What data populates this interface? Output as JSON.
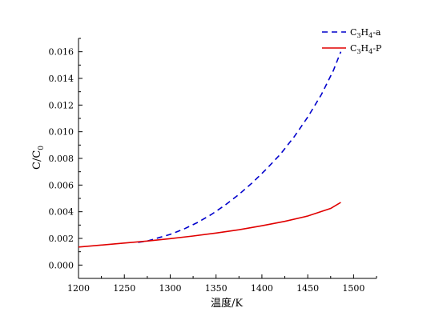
{
  "chart_data": {
    "type": "line",
    "xlabel": "温度/K",
    "ylabel_main": "C/C",
    "ylabel_sub": "0",
    "xlim": [
      1200,
      1525
    ],
    "ylim": [
      -0.001,
      0.017
    ],
    "x_ticks": [
      1200,
      1250,
      1300,
      1350,
      1400,
      1450,
      1500
    ],
    "x_tick_labels": [
      "1200",
      "1250",
      "1300",
      "1350",
      "1400",
      "1450",
      "1500"
    ],
    "y_ticks": [
      0.0,
      0.002,
      0.004,
      0.006,
      0.008,
      0.01,
      0.012,
      0.014,
      0.016
    ],
    "y_tick_labels": [
      "0.000",
      "0.002",
      "0.004",
      "0.006",
      "0.008",
      "0.010",
      "0.012",
      "0.014",
      "0.016"
    ],
    "grid": false,
    "legend_position": "top-right",
    "series": [
      {
        "legend_parts": [
          "C",
          "3",
          "H",
          "4",
          "-a"
        ],
        "color": "#0000cc",
        "style": "dashed",
        "x": [
          1265,
          1275,
          1290,
          1300,
          1315,
          1330,
          1345,
          1360,
          1375,
          1390,
          1405,
          1420,
          1435,
          1450,
          1465,
          1478,
          1486
        ],
        "y": [
          0.0017,
          0.0018,
          0.0021,
          0.0023,
          0.0027,
          0.0032,
          0.0038,
          0.0045,
          0.0053,
          0.0062,
          0.0072,
          0.0083,
          0.0096,
          0.0111,
          0.0128,
          0.0146,
          0.016
        ]
      },
      {
        "legend_parts": [
          "C",
          "3",
          "H",
          "4",
          "-P"
        ],
        "color": "#e00000",
        "style": "solid",
        "x": [
          1200,
          1225,
          1250,
          1275,
          1300,
          1325,
          1350,
          1375,
          1400,
          1425,
          1450,
          1475,
          1486
        ],
        "y": [
          0.00135,
          0.0015,
          0.00165,
          0.0018,
          0.00198,
          0.00218,
          0.0024,
          0.00265,
          0.00295,
          0.00328,
          0.00368,
          0.00425,
          0.0047
        ]
      }
    ]
  }
}
